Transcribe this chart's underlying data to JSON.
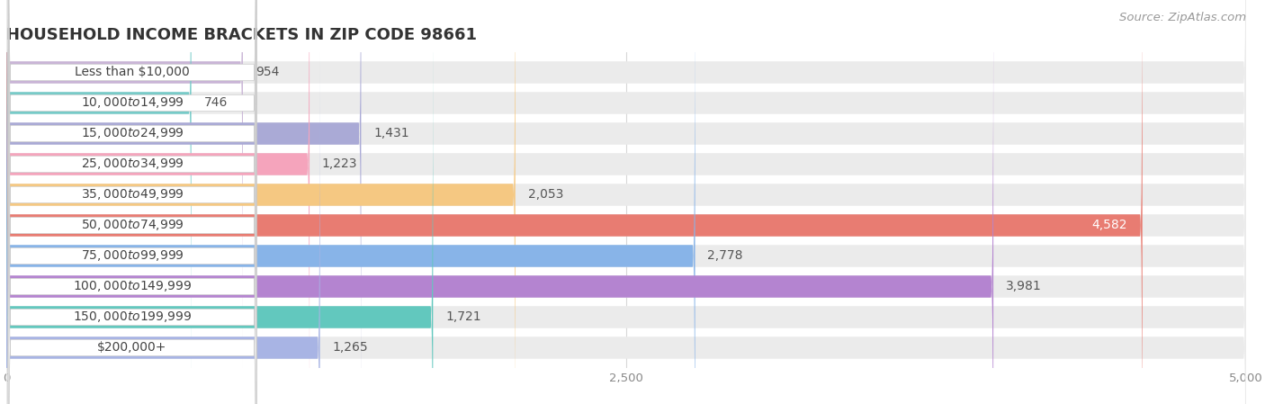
{
  "title": "HOUSEHOLD INCOME BRACKETS IN ZIP CODE 98661",
  "source": "Source: ZipAtlas.com",
  "categories": [
    "Less than $10,000",
    "$10,000 to $14,999",
    "$15,000 to $24,999",
    "$25,000 to $34,999",
    "$35,000 to $49,999",
    "$50,000 to $74,999",
    "$75,000 to $99,999",
    "$100,000 to $149,999",
    "$150,000 to $199,999",
    "$200,000+"
  ],
  "values": [
    954,
    746,
    1431,
    1223,
    2053,
    4582,
    2778,
    3981,
    1721,
    1265
  ],
  "bar_colors": [
    "#c9b4d6",
    "#76cbc8",
    "#aaaad6",
    "#f5a4bc",
    "#f5c882",
    "#e87c72",
    "#88b4e8",
    "#b484d0",
    "#62c8be",
    "#a8b4e4"
  ],
  "bar_height": 0.72,
  "xlim": [
    0,
    5000
  ],
  "xticks": [
    0,
    2500,
    5000
  ],
  "background_color": "#ffffff",
  "bar_background_color": "#ebebeb",
  "grid_color": "#d8d8d8",
  "title_fontsize": 13,
  "label_fontsize": 10,
  "value_fontsize": 10,
  "source_fontsize": 9.5,
  "value_color_dark": "#555555",
  "value_color_light": "#ffffff"
}
